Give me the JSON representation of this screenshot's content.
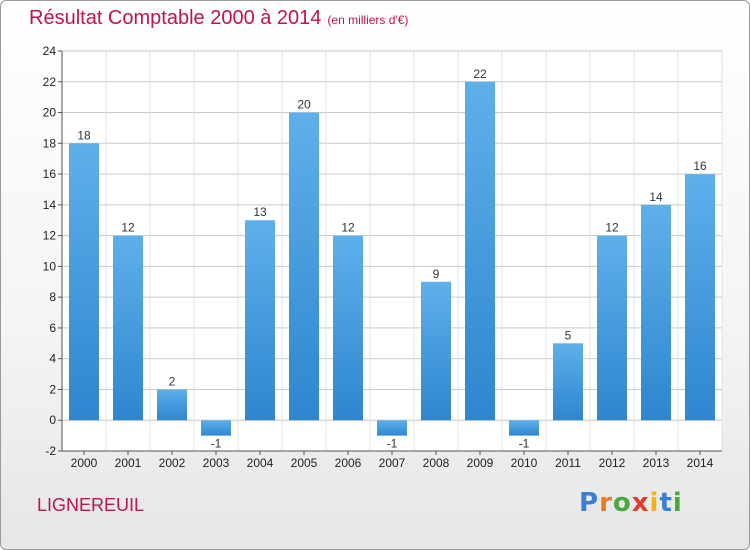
{
  "chart_data": {
    "type": "bar",
    "title": "Résultat Comptable 2000 à 2014",
    "subtitle": "(en milliers d'€)",
    "categories": [
      "2000",
      "2001",
      "2002",
      "2003",
      "2004",
      "2005",
      "2006",
      "2007",
      "2008",
      "2009",
      "2010",
      "2011",
      "2012",
      "2013",
      "2014"
    ],
    "values": [
      18,
      12,
      2,
      -1,
      13,
      20,
      12,
      -1,
      9,
      22,
      -1,
      5,
      12,
      14,
      16
    ],
    "ylim": [
      -2,
      24
    ],
    "yticks": [
      -2,
      0,
      2,
      4,
      6,
      8,
      10,
      12,
      14,
      16,
      18,
      20,
      22,
      24
    ],
    "grid": true,
    "bar_color": "#2e86cf",
    "grid_color": "#c9c9c9"
  },
  "footer": {
    "commune": "LIGNEREUIL",
    "logo_letters": [
      {
        "ch": "P",
        "color": "#3a7fd0"
      },
      {
        "ch": "r",
        "color": "#e87a24"
      },
      {
        "ch": "o",
        "color": "#4aa83c"
      },
      {
        "ch": "x",
        "color": "#e23b2e"
      },
      {
        "ch": "i",
        "color": "#f2b21c"
      },
      {
        "ch": "t",
        "color": "#3a7fd0"
      },
      {
        "ch": "i",
        "color": "#4aa83c"
      }
    ]
  },
  "colors": {
    "title": "#c0144a",
    "accent": "#c0144a"
  }
}
